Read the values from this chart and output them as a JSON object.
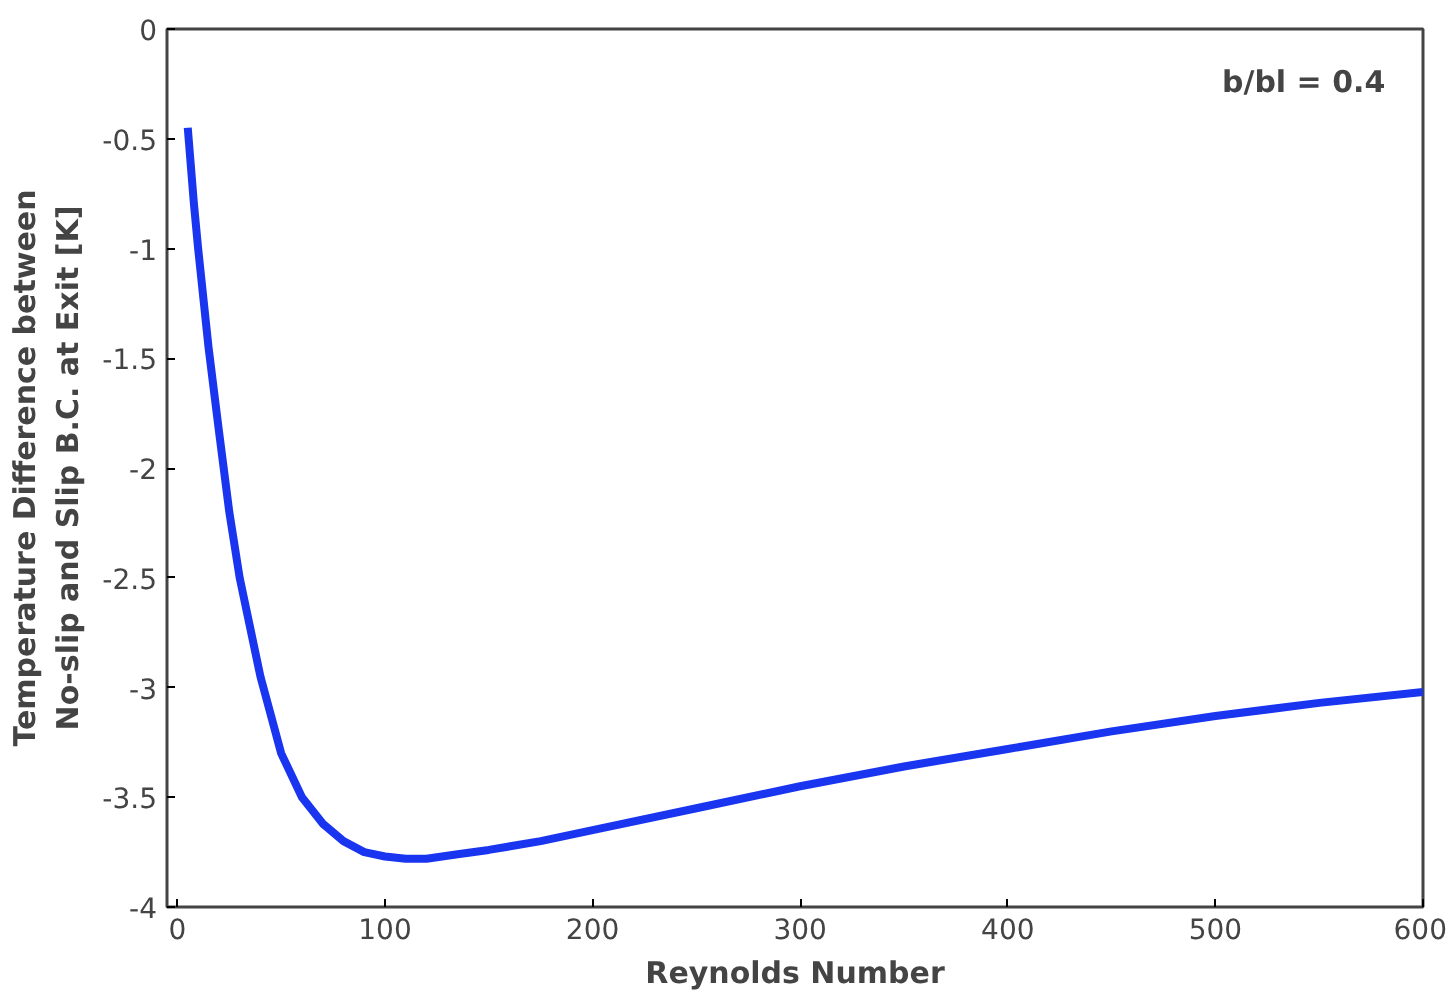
{
  "chart_data": {
    "type": "line",
    "xlabel": "Reynolds Number",
    "ylabel": "Temperature Difference between\nNo-slip and Slip B.C. at Exit [K]",
    "annotations": [
      "b/bl = 0.4"
    ],
    "x": [
      5,
      8,
      10,
      15,
      20,
      25,
      30,
      40,
      50,
      60,
      70,
      80,
      90,
      100,
      110,
      120,
      135,
      150,
      175,
      200,
      250,
      300,
      350,
      400,
      450,
      500,
      550,
      600
    ],
    "series": [
      {
        "color": "#1a35f0",
        "values": [
          -0.45,
          -0.8,
          -1.0,
          -1.45,
          -1.83,
          -2.2,
          -2.5,
          -2.95,
          -3.3,
          -3.5,
          -3.62,
          -3.7,
          -3.75,
          -3.77,
          -3.78,
          -3.78,
          -3.76,
          -3.74,
          -3.7,
          -3.65,
          -3.55,
          -3.45,
          -3.36,
          -3.28,
          -3.2,
          -3.13,
          -3.07,
          -3.02
        ]
      }
    ],
    "xlim": [
      -5,
      600
    ],
    "ylim": [
      -4,
      0
    ],
    "xticks": [
      0,
      100,
      200,
      300,
      400,
      500,
      600
    ],
    "yticks": [
      -4,
      -3.5,
      -3,
      -2.5,
      -2,
      -1.5,
      -1,
      -0.5,
      0
    ],
    "grid": false,
    "marker": "none",
    "line_style": "solid"
  }
}
